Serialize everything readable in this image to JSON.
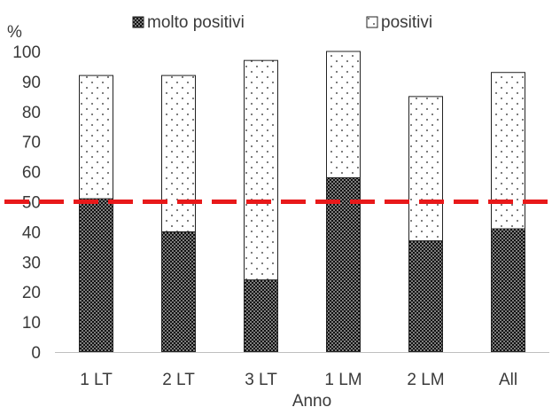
{
  "chart_data": {
    "type": "bar",
    "stacked": true,
    "categories": [
      "1 LT",
      "2 LT",
      "3 LT",
      "1 LM",
      "2 LM",
      "All"
    ],
    "series": [
      {
        "name": "molto positivi",
        "values": [
          51,
          40,
          24,
          58,
          37,
          41
        ],
        "fill": "dense-dark-dots"
      },
      {
        "name": "positivi",
        "values": [
          41,
          52,
          73,
          42,
          48,
          52
        ],
        "fill": "sparse-dots"
      }
    ],
    "reference_line": {
      "value": 50,
      "color": "#e8191a",
      "style": "dashed"
    },
    "ylabel": "%",
    "xlabel": "Anno",
    "ylim": [
      0,
      100
    ],
    "yticks": [
      0,
      10,
      20,
      30,
      40,
      50,
      60,
      70,
      80,
      90,
      100
    ],
    "grid": false,
    "legend": "top",
    "colors": {
      "bar_outline": "#222222",
      "axis": "#bfbfbf",
      "text": "#3a3a3a"
    }
  }
}
